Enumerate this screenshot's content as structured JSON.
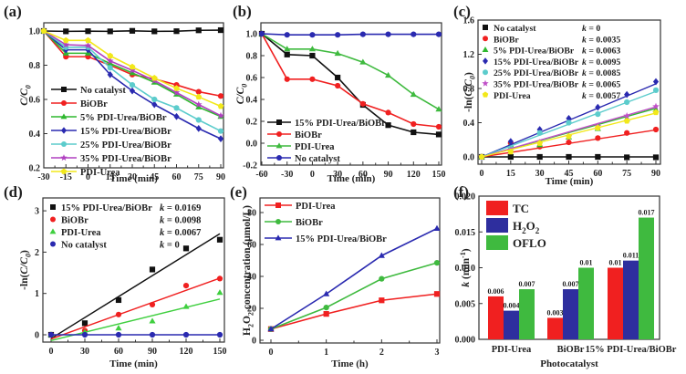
{
  "chart_data": [
    {
      "panel": "(a)",
      "type": "line",
      "xlabel": "Time (min)",
      "ylabel": "C/C0",
      "xlim": [
        -30,
        90
      ],
      "ylim": [
        0.2,
        1.0
      ],
      "xticks": [
        -30,
        -15,
        0,
        15,
        30,
        45,
        60,
        75,
        90
      ],
      "yticks": [
        0.2,
        0.4,
        0.6,
        0.8,
        1.0
      ],
      "ytick_labels": [
        "0.2",
        "0.4",
        "0.6",
        "0.8",
        "1.0"
      ],
      "legend": "center-left",
      "x": [
        -30,
        -15,
        0,
        15,
        30,
        45,
        60,
        75,
        90
      ],
      "series": [
        {
          "name": "No catalyst",
          "color": "#111111",
          "marker": "square",
          "values": [
            1.0,
            0.998,
            0.999,
            0.998,
            1.001,
            0.998,
            0.999,
            1.004,
            1.005
          ]
        },
        {
          "name": "BiOBr",
          "color": "#f02020",
          "marker": "circle",
          "values": [
            1.0,
            0.85,
            0.85,
            0.8,
            0.745,
            0.72,
            0.685,
            0.645,
            0.62
          ]
        },
        {
          "name": "5% PDI-Urea/BiOBr",
          "color": "#2fb82f",
          "marker": "triangle",
          "values": [
            1.0,
            0.87,
            0.87,
            0.81,
            0.755,
            0.7,
            0.63,
            0.555,
            0.5
          ]
        },
        {
          "name": "15% PDI-Urea/BiOBr",
          "color": "#2a2ab0",
          "marker": "diamond",
          "values": [
            1.0,
            0.89,
            0.89,
            0.745,
            0.65,
            0.57,
            0.5,
            0.43,
            0.37
          ]
        },
        {
          "name": "25% PDI-Urea/BiOBr",
          "color": "#5ccccc",
          "marker": "circle",
          "values": [
            1.0,
            0.905,
            0.905,
            0.785,
            0.685,
            0.6,
            0.55,
            0.48,
            0.415
          ]
        },
        {
          "name": "35% PDI-Urea/BiOBr",
          "color": "#b040c0",
          "marker": "star",
          "values": [
            1.0,
            0.92,
            0.915,
            0.825,
            0.77,
            0.71,
            0.64,
            0.57,
            0.505
          ]
        },
        {
          "name": "PDI-Urea",
          "color": "#f2e81a",
          "marker": "pentagon",
          "values": [
            1.0,
            0.945,
            0.945,
            0.855,
            0.79,
            0.725,
            0.665,
            0.615,
            0.56
          ]
        }
      ]
    },
    {
      "panel": "(b)",
      "type": "line",
      "xlabel": "Time (min)",
      "ylabel": "C/C0",
      "xlim": [
        -60,
        150
      ],
      "ylim": [
        -0.2,
        1.0
      ],
      "xticks": [
        -60,
        -30,
        0,
        30,
        60,
        90,
        120,
        150
      ],
      "yticks": [
        -0.2,
        0.0,
        0.2,
        0.4,
        0.6,
        0.8,
        1.0
      ],
      "ytick_labels": [
        "-0.2",
        "0.0",
        "0.2",
        "0.4",
        "0.6",
        "0.8",
        "1.0"
      ],
      "legend": "bottom-left",
      "x": [
        -60,
        -30,
        0,
        30,
        60,
        90,
        120,
        150
      ],
      "series": [
        {
          "name": "15% PDI-Urea/BiOBr",
          "color": "#111111",
          "marker": "square",
          "values": [
            1.0,
            0.81,
            0.8,
            0.6,
            0.35,
            0.165,
            0.1,
            0.08
          ]
        },
        {
          "name": "BiOBr",
          "color": "#f02020",
          "marker": "circle",
          "values": [
            1.0,
            0.585,
            0.585,
            0.525,
            0.36,
            0.28,
            0.175,
            0.15
          ]
        },
        {
          "name": "PDI-Urea",
          "color": "#3fba3f",
          "marker": "triangle",
          "values": [
            1.0,
            0.86,
            0.86,
            0.82,
            0.74,
            0.62,
            0.445,
            0.31
          ]
        },
        {
          "name": "No catalyst",
          "color": "#2a2ab0",
          "marker": "circle",
          "values": [
            1.0,
            0.99,
            0.99,
            0.99,
            0.995,
            0.995,
            0.995,
            0.995
          ]
        }
      ]
    },
    {
      "panel": "(c)",
      "type": "scatter",
      "fit": "linear",
      "xlabel": "Time (min)",
      "ylabel": "-ln(C/C0)",
      "xlim": [
        0,
        90
      ],
      "ylim": [
        -0.08,
        1.6
      ],
      "xticks": [
        0,
        15,
        30,
        45,
        60,
        75,
        90
      ],
      "yticks": [
        0.0,
        0.4,
        0.8,
        1.2,
        1.6
      ],
      "ytick_labels": [
        "0.0",
        "0.4",
        "0.8",
        "1.2",
        "1.6"
      ],
      "legend": "top-left",
      "x": [
        0,
        15,
        30,
        45,
        60,
        75,
        90
      ],
      "series": [
        {
          "name": "No catalyst",
          "k_label": "k = 0",
          "k": 0,
          "color": "#111111",
          "marker": "square",
          "values": [
            0,
            0.0,
            0.0,
            0.0,
            0.0,
            -0.005,
            -0.005
          ]
        },
        {
          "name": "BiOBr",
          "k_label": "k = 0.0035",
          "k": 0.0035,
          "color": "#f02020",
          "marker": "circle",
          "values": [
            0,
            0.16,
            0.12,
            0.17,
            0.22,
            0.28,
            0.32
          ]
        },
        {
          "name": "5% PDI-Urea/BiOBr",
          "k_label": "k = 0.0063",
          "k": 0.0063,
          "color": "#2fb82f",
          "marker": "triangle",
          "values": [
            0,
            0.14,
            0.14,
            0.23,
            0.33,
            0.44,
            0.55
          ]
        },
        {
          "name": "15% PDI-Urea/BiOBr",
          "k_label": "k = 0.0095",
          "k": 0.0095,
          "color": "#2a2ab0",
          "marker": "diamond",
          "values": [
            0,
            0.18,
            0.32,
            0.45,
            0.58,
            0.73,
            0.88
          ]
        },
        {
          "name": "25% PDI-Urea/BiOBr",
          "k_label": "k = 0.0085",
          "k": 0.0085,
          "color": "#5ccccc",
          "marker": "circle",
          "values": [
            0,
            0.1,
            0.28,
            0.4,
            0.5,
            0.64,
            0.78
          ]
        },
        {
          "name": "35% PDI-Urea/BiOBr",
          "k_label": "k = 0.0065",
          "k": 0.0065,
          "color": "#c050c8",
          "marker": "star",
          "values": [
            0,
            0.08,
            0.17,
            0.24,
            0.36,
            0.48,
            0.59
          ]
        },
        {
          "name": "PDI-Urea",
          "k_label": "k = 0.0057",
          "k": 0.0057,
          "color": "#f2e81a",
          "marker": "pentagon",
          "values": [
            0,
            0.06,
            0.16,
            0.24,
            0.34,
            0.42,
            0.52
          ]
        }
      ]
    },
    {
      "panel": "(d)",
      "type": "scatter",
      "fit": "linear",
      "xlabel": "Time (min)",
      "ylabel": "-ln(C/C0)",
      "xlim": [
        -5,
        155
      ],
      "ylim": [
        -0.18,
        3.3
      ],
      "xticks": [
        0,
        30,
        60,
        90,
        120,
        150
      ],
      "yticks": [
        0,
        1,
        2,
        3
      ],
      "ytick_labels": [
        "0",
        "1",
        "2",
        "3"
      ],
      "legend": "top-left",
      "x": [
        0,
        30,
        60,
        90,
        120,
        150
      ],
      "series": [
        {
          "name": "15% PDI-Urea/BiOBr",
          "k_label": "k = 0.0169",
          "k": 0.0169,
          "intercept": -0.09,
          "color": "#111111",
          "marker": "square",
          "values": [
            0,
            0.28,
            0.84,
            1.58,
            2.09,
            2.3
          ]
        },
        {
          "name": "BiOBr",
          "k_label": "k = 0.0098",
          "k": 0.0098,
          "intercept": -0.1,
          "color": "#f02020",
          "marker": "circle",
          "values": [
            0,
            0.1,
            0.49,
            0.73,
            1.19,
            1.36
          ]
        },
        {
          "name": "PDI-Urea",
          "k_label": "k = 0.0067",
          "k": 0.0067,
          "intercept": -0.14,
          "color": "#3fcf3f",
          "marker": "triangle",
          "values": [
            0,
            0.06,
            0.16,
            0.33,
            0.68,
            1.02
          ]
        },
        {
          "name": "No catalyst",
          "k_label": "k = 0",
          "k": 0,
          "intercept": 0,
          "color": "#2a2ab0",
          "marker": "circle",
          "values": [
            0,
            0,
            0,
            0,
            0,
            0
          ]
        }
      ]
    },
    {
      "panel": "(e)",
      "type": "line",
      "xlabel": "Time (h)",
      "ylabel": "H2O2 concentration (μmol/L)",
      "xlim": [
        -0.2,
        3.02
      ],
      "ylim": [
        0,
        90
      ],
      "xticks": [
        0,
        1,
        2,
        3
      ],
      "yticks": [
        0,
        20,
        40,
        60,
        80
      ],
      "ytick_labels": [
        "0",
        "20",
        "40",
        "60",
        "80"
      ],
      "legend": "top-left",
      "x": [
        0,
        1,
        2,
        3
      ],
      "series": [
        {
          "name": "PDI-Urea",
          "color": "#f02020",
          "marker": "square",
          "values": [
            7,
            16.5,
            25,
            29
          ]
        },
        {
          "name": "BiOBr",
          "color": "#3fba3f",
          "marker": "circle",
          "values": [
            7,
            20.5,
            38.5,
            48.5
          ]
        },
        {
          "name": "15% PDI-Urea/BiOBr",
          "color": "#2a2ab0",
          "marker": "triangle",
          "values": [
            7,
            29,
            53,
            70
          ]
        }
      ]
    },
    {
      "panel": "(f)",
      "type": "bar",
      "xlabel": "Photocatalyst",
      "ylabel": "k (min-1)",
      "ylim": [
        0,
        0.02
      ],
      "yticks": [
        0.0,
        0.005,
        0.01,
        0.015,
        0.02
      ],
      "ytick_labels": [
        "0.000",
        "0.005",
        "0.010",
        "0.015",
        "0.020"
      ],
      "legend": "top-left",
      "categories": [
        "PDI-Urea",
        "BiOBr",
        "15% PDI-Urea/BiOBr"
      ],
      "series": [
        {
          "name": "TC",
          "color": "#f02020",
          "values": [
            0.006,
            0.003,
            0.01
          ],
          "labels": [
            "0.006",
            "0.003",
            "0.01"
          ]
        },
        {
          "name": "H2O2",
          "color": "#2e2e9e",
          "values": [
            0.004,
            0.007,
            0.011
          ],
          "labels": [
            "0.004",
            "0.007",
            "0.011"
          ]
        },
        {
          "name": "OFLO",
          "color": "#3fba3f",
          "values": [
            0.007,
            0.01,
            0.017
          ],
          "labels": [
            "0.007",
            "0.01",
            "0.017"
          ]
        }
      ]
    }
  ]
}
